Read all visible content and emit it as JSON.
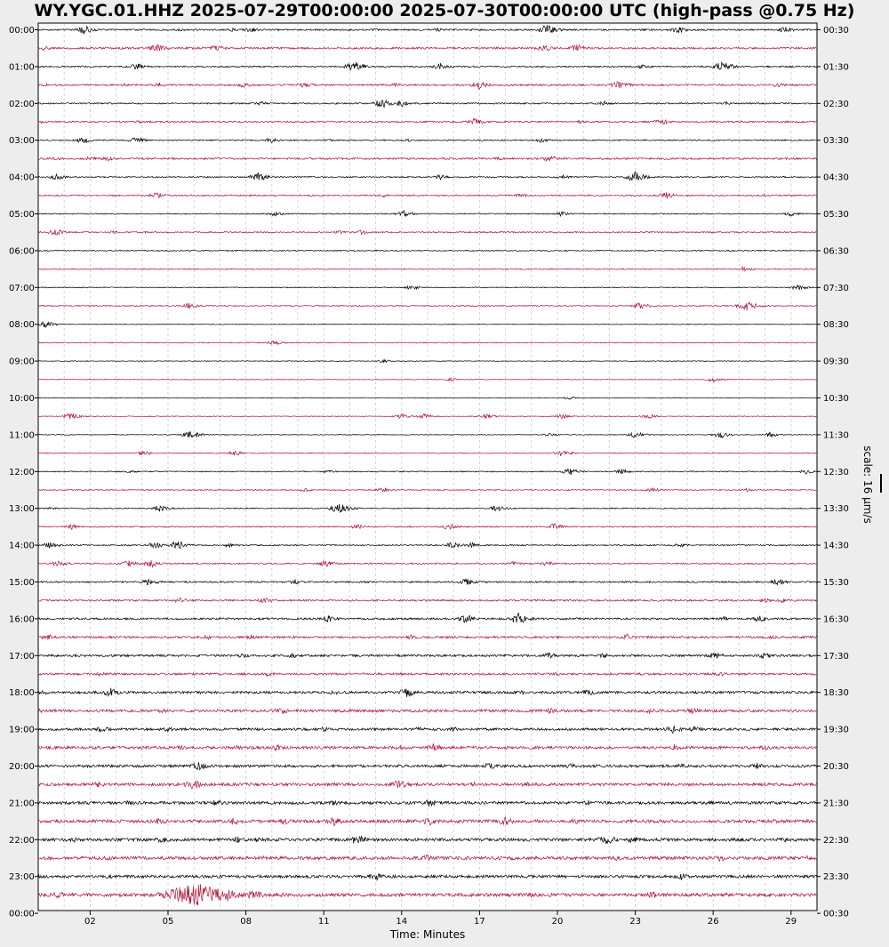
{
  "chart_data": {
    "type": "line",
    "title": "WY.YGC.01.HHZ 2025-07-29T00:00:00 2025-07-30T00:00:00 UTC (high-pass @0.75 Hz)",
    "xlabel": "Time: Minutes",
    "x_ticks": [
      "02",
      "05",
      "08",
      "11",
      "14",
      "17",
      "20",
      "23",
      "26",
      "29"
    ],
    "x_tick_minutes": [
      2,
      5,
      8,
      11,
      14,
      17,
      20,
      23,
      26,
      29
    ],
    "xlim": [
      0,
      30
    ],
    "grid": true,
    "row_minutes": 30,
    "scale_label": "scale: 16 μm/s",
    "trace_colors": [
      "#000000",
      "#b0183a"
    ],
    "left_labels": [
      "00:00",
      "01:00",
      "02:00",
      "03:00",
      "04:00",
      "05:00",
      "06:00",
      "07:00",
      "08:00",
      "09:00",
      "10:00",
      "11:00",
      "12:00",
      "13:00",
      "14:00",
      "15:00",
      "16:00",
      "17:00",
      "18:00",
      "19:00",
      "20:00",
      "21:00",
      "22:00",
      "23:00",
      "00:00"
    ],
    "right_labels": [
      "00:30",
      "01:30",
      "02:30",
      "03:30",
      "04:30",
      "05:30",
      "06:30",
      "07:30",
      "08:30",
      "09:30",
      "10:30",
      "11:30",
      "12:30",
      "13:30",
      "14:30",
      "15:30",
      "16:30",
      "17:30",
      "18:30",
      "19:30",
      "20:30",
      "21:30",
      "22:30",
      "23:30",
      "00:30"
    ],
    "noise_levels": [
      0.9,
      1.1,
      0.8,
      1.0,
      0.8,
      0.9,
      0.7,
      1.0,
      0.7,
      0.8,
      0.6,
      0.8,
      0.6,
      0.6,
      0.5,
      0.6,
      0.4,
      0.5,
      0.4,
      0.4,
      0.4,
      0.4,
      0.4,
      0.5,
      0.6,
      0.6,
      0.6,
      0.7,
      0.7,
      0.8,
      0.9,
      1.0,
      1.1,
      1.2,
      1.3,
      1.2,
      1.4,
      1.5,
      1.4,
      1.6,
      1.5,
      1.6,
      1.6,
      1.8,
      1.7,
      1.8,
      1.6,
      1.9
    ],
    "events": [
      [
        [
          1.8,
          5
        ],
        [
          5.5,
          2
        ],
        [
          7.5,
          2
        ],
        [
          8.2,
          3
        ],
        [
          13,
          2
        ],
        [
          15.4,
          2
        ],
        [
          19.6,
          6
        ],
        [
          24.7,
          4
        ],
        [
          28.8,
          4
        ]
      ],
      [
        [
          0.3,
          3
        ],
        [
          4.6,
          5
        ],
        [
          6.9,
          4
        ],
        [
          19.5,
          4
        ],
        [
          20.8,
          5
        ]
      ],
      [
        [
          3.8,
          4
        ],
        [
          12.2,
          6
        ],
        [
          15.5,
          4
        ],
        [
          23.3,
          3
        ],
        [
          26.4,
          6
        ]
      ],
      [
        [
          0.3,
          2
        ],
        [
          3.3,
          2
        ],
        [
          4.7,
          3
        ],
        [
          7.9,
          3
        ],
        [
          10.3,
          4
        ],
        [
          13.7,
          3
        ],
        [
          17.0,
          5
        ],
        [
          22.4,
          5
        ],
        [
          28.5,
          3
        ]
      ],
      [
        [
          8.5,
          3
        ],
        [
          13.3,
          6
        ],
        [
          14.0,
          4
        ],
        [
          21.8,
          3
        ],
        [
          26.5,
          2
        ]
      ],
      [
        [
          0.1,
          2
        ],
        [
          3.9,
          2
        ],
        [
          16.8,
          4
        ],
        [
          20.9,
          2
        ],
        [
          24.0,
          4
        ],
        [
          27.0,
          2
        ]
      ],
      [
        [
          1.7,
          4
        ],
        [
          3.8,
          4
        ],
        [
          9.0,
          3
        ],
        [
          11.2,
          2
        ],
        [
          14.3,
          2
        ],
        [
          19.4,
          3
        ]
      ],
      [
        [
          0.5,
          2
        ],
        [
          2.0,
          3
        ],
        [
          2.7,
          3
        ],
        [
          17.7,
          2
        ],
        [
          19.7,
          4
        ]
      ],
      [
        [
          0.7,
          4
        ],
        [
          8.5,
          5
        ],
        [
          15.5,
          3
        ],
        [
          20.2,
          3
        ],
        [
          23.0,
          6
        ]
      ],
      [
        [
          4.6,
          4
        ],
        [
          13.3,
          2
        ],
        [
          18.6,
          3
        ],
        [
          24.2,
          4
        ],
        [
          28.0,
          2
        ]
      ],
      [
        [
          9.1,
          3
        ],
        [
          14.1,
          4
        ],
        [
          20.2,
          3
        ],
        [
          29.0,
          3
        ]
      ],
      [
        [
          0.7,
          4
        ],
        [
          2.9,
          2
        ],
        [
          11.6,
          2
        ],
        [
          12.5,
          3
        ]
      ],
      [],
      [
        [
          27.2,
          3
        ]
      ],
      [
        [
          14.4,
          3
        ],
        [
          29.3,
          4
        ]
      ],
      [
        [
          5.8,
          4
        ],
        [
          23.2,
          4
        ],
        [
          27.3,
          6
        ]
      ],
      [
        [
          0.3,
          4
        ]
      ],
      [
        [
          9.1,
          3
        ]
      ],
      [
        [
          13.3,
          2
        ]
      ],
      [
        [
          15.9,
          2
        ],
        [
          26.0,
          3
        ]
      ],
      [
        [
          20.5,
          2
        ]
      ],
      [
        [
          1.3,
          4
        ],
        [
          14.0,
          3
        ],
        [
          14.9,
          3
        ],
        [
          17.3,
          3
        ],
        [
          20.2,
          3
        ],
        [
          23.5,
          3
        ]
      ],
      [
        [
          5.9,
          5
        ],
        [
          19.7,
          2
        ],
        [
          23.0,
          4
        ],
        [
          26.3,
          4
        ],
        [
          28.2,
          3
        ]
      ],
      [
        [
          4.1,
          3
        ],
        [
          7.6,
          3
        ],
        [
          20.2,
          4
        ]
      ],
      [
        [
          3.6,
          2
        ],
        [
          11.2,
          2
        ],
        [
          20.5,
          4
        ],
        [
          22.5,
          3
        ],
        [
          29.6,
          3
        ]
      ],
      [
        [
          10.3,
          2
        ],
        [
          13.3,
          3
        ],
        [
          23.7,
          3
        ],
        [
          27.3,
          2
        ]
      ],
      [
        [
          0.5,
          2
        ],
        [
          4.7,
          4
        ],
        [
          11.6,
          6
        ],
        [
          17.7,
          4
        ]
      ],
      [
        [
          1.3,
          3
        ],
        [
          12.3,
          3
        ],
        [
          15.9,
          4
        ],
        [
          19.9,
          4
        ]
      ],
      [
        [
          0.5,
          4
        ],
        [
          4.5,
          4
        ],
        [
          5.4,
          5
        ],
        [
          7.4,
          3
        ],
        [
          16.0,
          4
        ],
        [
          16.7,
          3
        ],
        [
          24.7,
          3
        ]
      ],
      [
        [
          0.8,
          4
        ],
        [
          3.5,
          4
        ],
        [
          4.4,
          4
        ],
        [
          11.1,
          4
        ],
        [
          18.3,
          3
        ],
        [
          19.6,
          3
        ]
      ],
      [
        [
          4.3,
          4
        ],
        [
          9.9,
          3
        ],
        [
          16.5,
          4
        ],
        [
          28.5,
          4
        ]
      ],
      [
        [
          5.5,
          4
        ],
        [
          8.8,
          4
        ],
        [
          28.0,
          3
        ],
        [
          28.7,
          3
        ]
      ],
      [
        [
          11.2,
          4
        ],
        [
          16.5,
          5
        ],
        [
          18.5,
          7
        ],
        [
          26.5,
          3
        ],
        [
          27.8,
          4
        ]
      ],
      [
        [
          0.4,
          4
        ],
        [
          6.5,
          3
        ],
        [
          8.2,
          3
        ],
        [
          14.4,
          3
        ],
        [
          22.7,
          4
        ],
        [
          28.3,
          3
        ]
      ],
      [
        [
          7.9,
          3
        ],
        [
          9.8,
          3
        ],
        [
          19.7,
          4
        ],
        [
          21.8,
          3
        ],
        [
          26.1,
          4
        ],
        [
          28.0,
          4
        ]
      ],
      [
        [
          2.4,
          3
        ],
        [
          8.9,
          3
        ],
        [
          20.0,
          2
        ],
        [
          26.3,
          3
        ]
      ],
      [
        [
          0.2,
          3
        ],
        [
          2.8,
          5
        ],
        [
          11.4,
          3
        ],
        [
          14.2,
          6
        ],
        [
          18.7,
          3
        ],
        [
          21.2,
          4
        ]
      ],
      [
        [
          0.1,
          3
        ],
        [
          4.8,
          3
        ],
        [
          9.4,
          5
        ],
        [
          19.7,
          4
        ],
        [
          23.6,
          4
        ],
        [
          25.2,
          4
        ]
      ],
      [
        [
          2.5,
          4
        ],
        [
          5.0,
          3
        ],
        [
          11.0,
          3
        ],
        [
          14.7,
          3
        ],
        [
          16.0,
          3
        ],
        [
          24.5,
          5
        ],
        [
          25.3,
          4
        ]
      ],
      [
        [
          5.5,
          3
        ],
        [
          7.7,
          3
        ],
        [
          9.2,
          4
        ],
        [
          14.0,
          3
        ],
        [
          15.3,
          5
        ],
        [
          24.5,
          4
        ],
        [
          28.0,
          3
        ]
      ],
      [
        [
          6.2,
          5
        ],
        [
          17.4,
          4
        ],
        [
          20.5,
          3
        ],
        [
          24.8,
          3
        ],
        [
          27.7,
          4
        ]
      ],
      [
        [
          2.3,
          4
        ],
        [
          6.0,
          6
        ],
        [
          13.9,
          6
        ],
        [
          16.8,
          3
        ],
        [
          18.8,
          3
        ]
      ],
      [
        [
          3.5,
          3
        ],
        [
          6.9,
          4
        ],
        [
          11.4,
          3
        ],
        [
          15.1,
          5
        ],
        [
          21.2,
          3
        ],
        [
          25.9,
          3
        ]
      ],
      [
        [
          4.7,
          4
        ],
        [
          7.6,
          5
        ],
        [
          9.5,
          4
        ],
        [
          11.4,
          5
        ],
        [
          15.1,
          5
        ],
        [
          18.0,
          5
        ],
        [
          20.7,
          4
        ],
        [
          28.4,
          3
        ]
      ],
      [
        [
          1.3,
          4
        ],
        [
          4.8,
          4
        ],
        [
          7.7,
          4
        ],
        [
          8.4,
          3
        ],
        [
          12.3,
          6
        ],
        [
          21.9,
          6
        ],
        [
          22.9,
          4
        ],
        [
          28.8,
          3
        ]
      ],
      [
        [
          2.7,
          3
        ],
        [
          8.7,
          3
        ],
        [
          15.0,
          4
        ],
        [
          18.3,
          3
        ],
        [
          22.3,
          3
        ],
        [
          26.3,
          4
        ],
        [
          29.6,
          3
        ]
      ],
      [
        [
          2.7,
          3
        ],
        [
          13.0,
          5
        ],
        [
          24.8,
          4
        ]
      ],
      [
        [
          0.8,
          4
        ],
        [
          6.1,
          14
        ],
        [
          7.3,
          8
        ],
        [
          8.3,
          6
        ],
        [
          9.5,
          3
        ],
        [
          19.0,
          3
        ],
        [
          23.7,
          4
        ],
        [
          26.5,
          3
        ]
      ]
    ]
  }
}
